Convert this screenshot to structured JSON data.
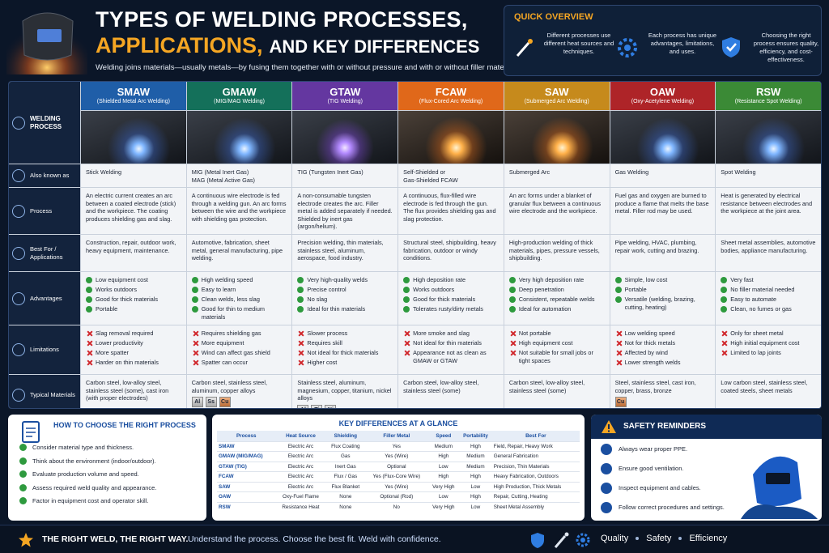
{
  "header": {
    "title": [
      "TYPES OF WELDING PROCESSES,",
      "APPLICATIONS,",
      "AND KEY DIFFERENCES"
    ],
    "subtitle": "Welding joins materials—usually metals—by fusing them together with or without pressure and with or without filler material."
  },
  "quick_overview": {
    "title": "QUICK OVERVIEW",
    "items": [
      "Different processes use different heat sources and techniques.",
      "Each process has unique advantages, limitations, and uses.",
      "Choosing the right process ensures quality, efficiency, and cost-effectiveness."
    ]
  },
  "table": {
    "row_labels": [
      "WELDING PROCESS",
      "Also known as",
      "Process",
      "Best For / Applications",
      "Advantages",
      "Limitations",
      "Typical Materials"
    ],
    "processes": [
      {
        "code": "SMAW",
        "name": "(Shielded Metal Arc Welding)",
        "aka": "Stick Welding",
        "process": "An electric current creates an arc between a coated electrode (stick) and the workpiece. The coating produces shielding gas and slag.",
        "best_for": "Construction, repair, outdoor work, heavy equipment, maintenance.",
        "advantages": [
          "Low equipment cost",
          "Works outdoors",
          "Good for thick materials",
          "Portable"
        ],
        "limitations": [
          "Slag removal required",
          "Lower productivity",
          "More spatter",
          "Harder on thin materials"
        ],
        "materials": "Carbon steel, low-alloy steel, stainless steel (some), cast iron (with proper electrodes)",
        "tags": []
      },
      {
        "code": "GMAW",
        "name": "(MIG/MAG Welding)",
        "aka": "MIG (Metal Inert Gas)\nMAG (Metal Active Gas)",
        "process": "A continuous wire electrode is fed through a welding gun. An arc forms between the wire and the workpiece with shielding gas protection.",
        "best_for": "Automotive, fabrication, sheet metal, general manufacturing, pipe welding.",
        "advantages": [
          "High welding speed",
          "Easy to learn",
          "Clean welds, less slag",
          "Good for thin to medium materials"
        ],
        "limitations": [
          "Requires shielding gas",
          "More equipment",
          "Wind can affect gas shield",
          "Spatter can occur"
        ],
        "materials": "Carbon steel, stainless steel, aluminum, copper alloys",
        "tags": [
          "Al",
          "Ss",
          "Cu"
        ]
      },
      {
        "code": "GTAW",
        "name": "(TIG Welding)",
        "aka": "TIG (Tungsten Inert Gas)",
        "process": "A non-consumable tungsten electrode creates the arc. Filler metal is added separately if needed. Shielded by inert gas (argon/helium).",
        "best_for": "Precision welding, thin materials, stainless steel, aluminum, aerospace, food industry.",
        "advantages": [
          "Very high-quality welds",
          "Precise control",
          "No slag",
          "Ideal for thin materials"
        ],
        "limitations": [
          "Slower process",
          "Requires skill",
          "Not ideal for thick materials",
          "Higher cost"
        ],
        "materials": "Stainless steel, aluminum, magnesium, copper, titanium, nickel alloys",
        "tags": [
          "Al",
          "Ti",
          "Ni"
        ]
      },
      {
        "code": "FCAW",
        "name": "(Flux-Cored Arc Welding)",
        "aka": "Self-Shielded or\nGas-Shielded FCAW",
        "process": "A continuous, flux-filled wire electrode is fed through the gun. The flux provides shielding gas and slag protection.",
        "best_for": "Structural steel, shipbuilding, heavy fabrication, outdoor or windy conditions.",
        "advantages": [
          "High deposition rate",
          "Works outdoors",
          "Good for thick materials",
          "Tolerates rusty/dirty metals"
        ],
        "limitations": [
          "More smoke and slag",
          "Not ideal for thin materials",
          "Appearance not as clean as GMAW or GTAW"
        ],
        "materials": "Carbon steel, low-alloy steel, stainless steel (some)",
        "tags": []
      },
      {
        "code": "SAW",
        "name": "(Submerged Arc Welding)",
        "aka": "Submerged Arc",
        "process": "An arc forms under a blanket of granular flux between a continuous wire electrode and the workpiece.",
        "best_for": "High-production welding of thick materials, pipes, pressure vessels, shipbuilding.",
        "advantages": [
          "Very high deposition rate",
          "Deep penetration",
          "Consistent, repeatable welds",
          "Ideal for automation"
        ],
        "limitations": [
          "Not portable",
          "High equipment cost",
          "Not suitable for small jobs or tight spaces"
        ],
        "materials": "Carbon steel, low-alloy steel, stainless steel (some)",
        "tags": []
      },
      {
        "code": "OAW",
        "name": "(Oxy-Acetylene Welding)",
        "aka": "Gas Welding",
        "process": "Fuel gas and oxygen are burned to produce a flame that melts the base metal. Filler rod may be used.",
        "best_for": "Pipe welding, HVAC, plumbing, repair work, cutting and brazing.",
        "advantages": [
          "Simple, low cost",
          "Portable",
          "Versatile (welding, brazing, cutting, heating)"
        ],
        "limitations": [
          "Low welding speed",
          "Not for thick metals",
          "Affected by wind",
          "Lower strength welds"
        ],
        "materials": "Steel, stainless steel, cast iron, copper, brass, bronze",
        "tags": [
          "Cu"
        ]
      },
      {
        "code": "RSW",
        "name": "(Resistance Spot Welding)",
        "aka": "Spot Welding",
        "process": "Heat is generated by electrical resistance between electrodes and the workpiece at the joint area.",
        "best_for": "Sheet metal assemblies, automotive bodies, appliance manufacturing.",
        "advantages": [
          "Very fast",
          "No filler material needed",
          "Easy to automate",
          "Clean, no fumes or gas"
        ],
        "limitations": [
          "Only for sheet metal",
          "High initial equipment cost",
          "Limited to lap joints"
        ],
        "materials": "Low carbon steel, stainless steel, coated steels, sheet metals",
        "tags": []
      }
    ]
  },
  "how_to_choose": {
    "title": "HOW TO CHOOSE THE RIGHT PROCESS",
    "items": [
      "Consider material type and thickness.",
      "Think about the environment (indoor/outdoor).",
      "Evaluate production volume and speed.",
      "Assess required weld quality and appearance.",
      "Factor in equipment cost and operator skill."
    ]
  },
  "key_differences": {
    "title": "KEY DIFFERENCES AT A GLANCE",
    "headers": [
      "Process",
      "Heat Source",
      "Shielding",
      "Filler Metal",
      "Speed",
      "Portability",
      "Best For"
    ],
    "rows": [
      [
        "SMAW",
        "Electric Arc",
        "Flux Coating",
        "Yes",
        "Medium",
        "High",
        "Field, Repair, Heavy Work"
      ],
      [
        "GMAW (MIG/MAG)",
        "Electric Arc",
        "Gas",
        "Yes (Wire)",
        "High",
        "Medium",
        "General Fabrication"
      ],
      [
        "GTAW (TIG)",
        "Electric Arc",
        "Inert Gas",
        "Optional",
        "Low",
        "Medium",
        "Precision, Thin Materials"
      ],
      [
        "FCAW",
        "Electric Arc",
        "Flux / Gas",
        "Yes (Flux-Core Wire)",
        "High",
        "High",
        "Heavy Fabrication, Outdoors"
      ],
      [
        "SAW",
        "Electric Arc",
        "Flux Blanket",
        "Yes (Wire)",
        "Very High",
        "Low",
        "High Production, Thick Metals"
      ],
      [
        "OAW",
        "Oxy-Fuel Flame",
        "None",
        "Optional (Rod)",
        "Low",
        "High",
        "Repair, Cutting, Heating"
      ],
      [
        "RSW",
        "Resistance Heat",
        "None",
        "No",
        "Very High",
        "Low",
        "Sheet Metal Assembly"
      ]
    ]
  },
  "safety": {
    "title": "SAFETY REMINDERS",
    "items": [
      "Always wear proper PPE.",
      "Ensure good ventilation.",
      "Inspect equipment and cables.",
      "Follow correct procedures and settings."
    ]
  },
  "footer": {
    "slogan": "THE RIGHT WELD, THE RIGHT WAY.",
    "tagline": "Understand the process. Choose the best fit. Weld with confidence.",
    "pillars": [
      "Quality",
      "Safety",
      "Efficiency"
    ]
  }
}
